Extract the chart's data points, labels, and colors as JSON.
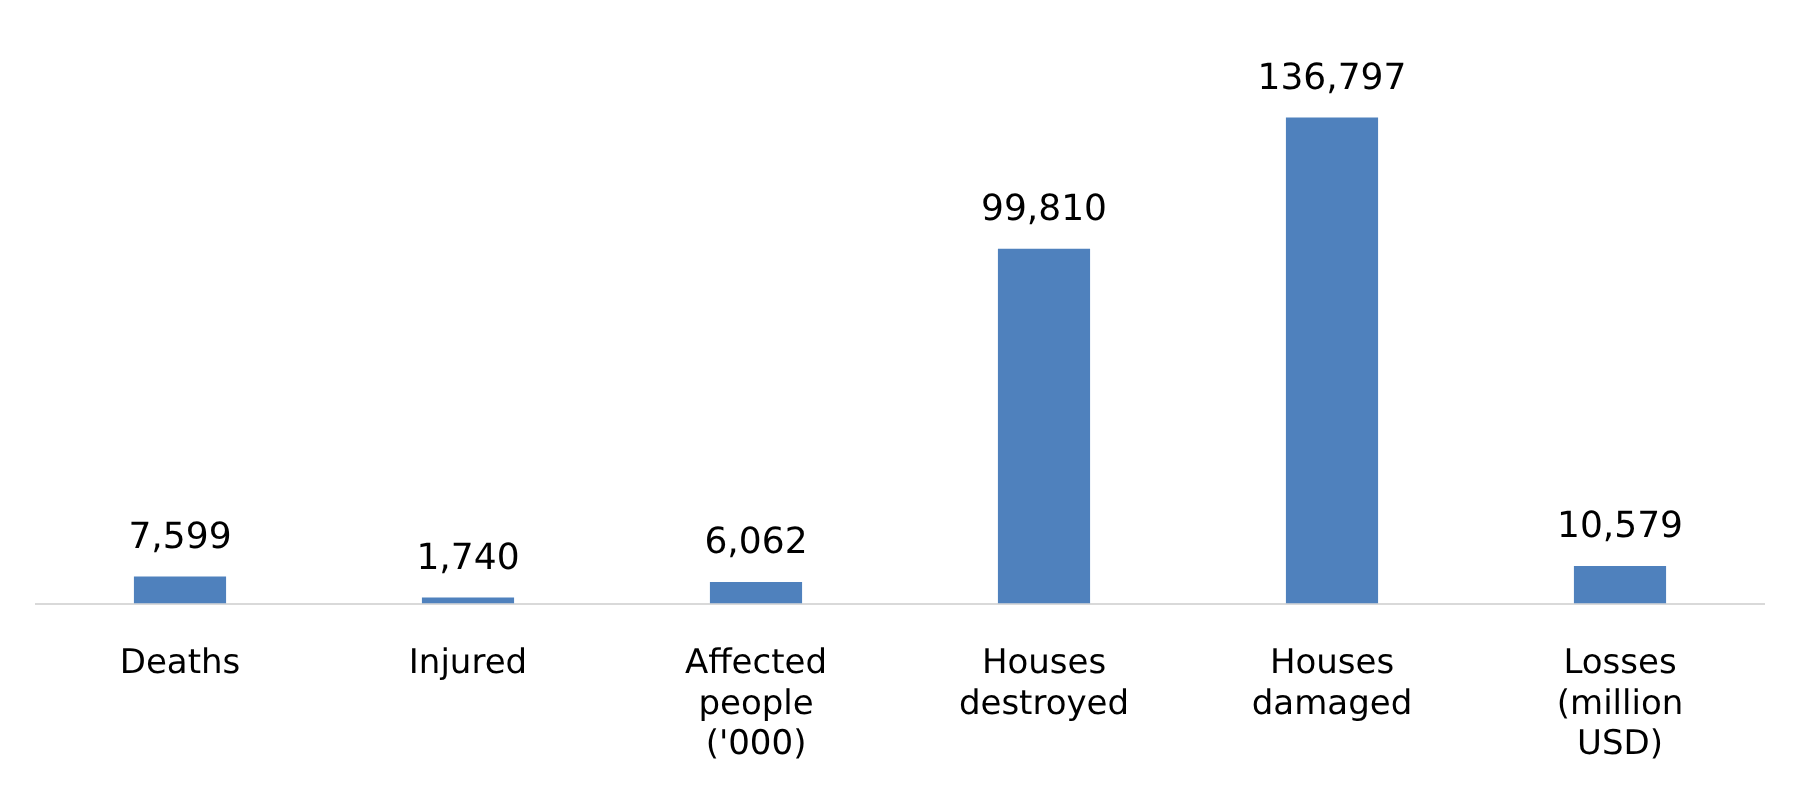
{
  "chart_data": {
    "type": "bar",
    "categories": [
      "Deaths",
      "Injured",
      "Affected people ('000)",
      "Houses destroyed",
      "Houses damaged",
      "Losses (million USD)"
    ],
    "values": [
      7599,
      1740,
      6062,
      99810,
      136797,
      10579
    ],
    "value_labels": [
      "7,599",
      "1,740",
      "6,062",
      "99,810",
      "136,797",
      "10,579"
    ],
    "color": "#4f81bd",
    "grid": false,
    "legend": false
  }
}
